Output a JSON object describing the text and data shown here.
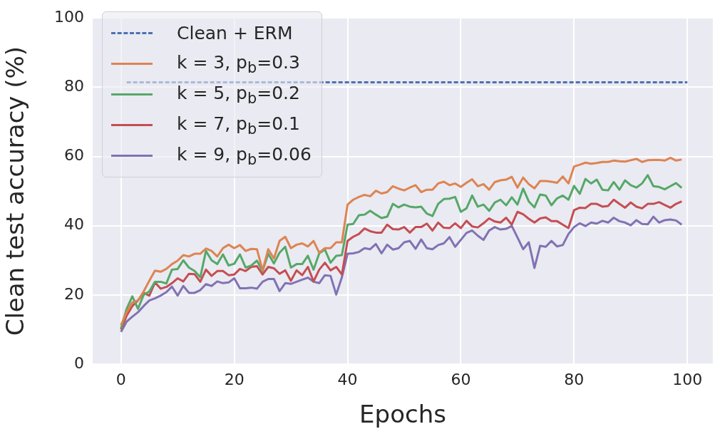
{
  "chart_data": {
    "type": "line",
    "xlabel": "Epochs",
    "ylabel": "Clean test accuracy (%)",
    "x": [
      0,
      1,
      2,
      3,
      4,
      5,
      6,
      7,
      8,
      9,
      10,
      11,
      12,
      13,
      14,
      15,
      16,
      17,
      18,
      19,
      20,
      21,
      22,
      23,
      24,
      25,
      26,
      27,
      28,
      29,
      30,
      31,
      32,
      33,
      34,
      35,
      36,
      37,
      38,
      39,
      40,
      41,
      42,
      43,
      44,
      45,
      46,
      47,
      48,
      49,
      50,
      51,
      52,
      53,
      54,
      55,
      56,
      57,
      58,
      59,
      60,
      61,
      62,
      63,
      64,
      65,
      66,
      67,
      68,
      69,
      70,
      71,
      72,
      73,
      74,
      75,
      76,
      77,
      78,
      79,
      80,
      81,
      82,
      83,
      84,
      85,
      86,
      87,
      88,
      89,
      90,
      91,
      92,
      93,
      94,
      95,
      96,
      97,
      98,
      99
    ],
    "xlim": [
      -5,
      104.5
    ],
    "xticks": [
      0,
      20,
      40,
      60,
      80,
      100
    ],
    "ylim": [
      0,
      100
    ],
    "yticks": [
      0,
      20,
      40,
      60,
      80,
      100
    ],
    "grid": true,
    "legend": "top left",
    "marker": "none",
    "series": [
      {
        "name": "Clean + ERM",
        "color": "#4c72b0",
        "line_style": "dashed",
        "x": [
          1,
          100
        ],
        "values": [
          81.4,
          81.4
        ]
      },
      {
        "name": "k = 3, p$_{b}$=0.3",
        "color": "#dd8452",
        "line_style": "solid",
        "values": [
          11.3,
          15,
          17.8,
          18.4,
          21,
          24.1,
          27,
          26.7,
          27.5,
          28.9,
          29.9,
          31.5,
          31.1,
          31.9,
          31.9,
          33.4,
          32.7,
          31.1,
          33.5,
          34.5,
          33.5,
          34.4,
          32.7,
          33.3,
          33.2,
          27.1,
          33.2,
          30.5,
          35.6,
          36.8,
          33.5,
          34.5,
          34.9,
          34,
          35.6,
          32.2,
          33.5,
          33.5,
          35.2,
          35.2,
          46.1,
          47.5,
          48.3,
          48.9,
          48.5,
          50.1,
          49.3,
          49.7,
          51.4,
          50.7,
          50.2,
          51,
          51.7,
          49.7,
          50.4,
          50.4,
          52.2,
          52.7,
          51.7,
          52.2,
          51.2,
          52.4,
          53.4,
          51.4,
          52,
          50.4,
          52.6,
          53.1,
          53.3,
          54.1,
          51,
          53.9,
          52,
          50.8,
          52.9,
          52.9,
          52.7,
          52.4,
          54.2,
          52.2,
          57.1,
          57.6,
          58.2,
          57.9,
          58.1,
          58.4,
          58.4,
          58.8,
          58.6,
          58.5,
          58.9,
          59.3,
          58.4,
          58.9,
          59,
          59,
          58.8,
          59.6,
          58.8,
          59.1
        ]
      },
      {
        "name": "k = 5, p$_{b}$=0.2",
        "color": "#55a868",
        "line_style": "solid",
        "values": [
          10.3,
          16,
          19.6,
          16,
          20,
          21,
          23.8,
          23.8,
          23.3,
          27.3,
          27.5,
          30,
          27.9,
          26.9,
          25.1,
          32.7,
          30,
          28.9,
          31.7,
          28.5,
          29,
          31.7,
          27.9,
          28.5,
          29.9,
          26.9,
          31.9,
          29.1,
          32.2,
          33.9,
          27.9,
          28.9,
          28.9,
          31.3,
          27.3,
          32,
          33.1,
          29.3,
          31.3,
          31.5,
          40.3,
          40.5,
          43,
          43.2,
          44.3,
          43.2,
          42.2,
          42.6,
          46.3,
          45.3,
          46.1,
          45.5,
          45.3,
          45.5,
          43.5,
          42.8,
          46.3,
          47.7,
          47.8,
          48.3,
          44,
          45,
          48.7,
          45.5,
          46.1,
          44.3,
          46.7,
          47.5,
          45.9,
          48.2,
          46.1,
          50.7,
          47,
          45.3,
          49,
          48.7,
          45.9,
          47.9,
          48.7,
          47.5,
          51.5,
          49.2,
          53.5,
          52.2,
          53.3,
          50.4,
          50.2,
          52.6,
          50.4,
          53.1,
          51.7,
          51,
          52.2,
          54.6,
          51.4,
          51.2,
          50.5,
          51.4,
          52.3,
          50.9
        ]
      },
      {
        "name": "k = 7, p$_{b}$=0.1",
        "color": "#c44e52",
        "line_style": "solid",
        "values": [
          10,
          14,
          16.8,
          18.4,
          20.6,
          19.8,
          23.6,
          21.8,
          22.3,
          23.4,
          24.8,
          23.9,
          26.1,
          26,
          23.8,
          27.3,
          25.5,
          26.9,
          26.9,
          25.7,
          25.9,
          27.5,
          26.9,
          28.1,
          28.3,
          25.9,
          28.1,
          27.7,
          26.1,
          27.1,
          24.1,
          27.1,
          25.7,
          28.1,
          23.9,
          27.3,
          29.3,
          27.1,
          28.1,
          25.9,
          35.6,
          36.8,
          37.6,
          39.2,
          38.4,
          38,
          38,
          40.3,
          39,
          38.9,
          39.6,
          38,
          39.6,
          39.6,
          40.6,
          38.6,
          40.9,
          39.4,
          39.3,
          40.7,
          39.3,
          41.4,
          39.8,
          39.5,
          40.7,
          42.1,
          41.2,
          40.9,
          42.3,
          40.3,
          44,
          43.3,
          42,
          40.9,
          42.1,
          42.4,
          41.3,
          41.3,
          40.3,
          39.3,
          44.5,
          45.2,
          45.1,
          46.3,
          46.3,
          45.5,
          45.7,
          47.5,
          46.3,
          45.2,
          46.7,
          45.5,
          45,
          46.3,
          46.3,
          46.8,
          46,
          45.2,
          46.3,
          47
        ]
      },
      {
        "name": "k = 9, p$_{b}$=0.06",
        "color": "#8172b3",
        "line_style": "solid",
        "values": [
          9.3,
          12.3,
          13.7,
          15,
          16.8,
          18.4,
          19,
          19.8,
          20.8,
          22.4,
          19.8,
          22.6,
          20.6,
          20.6,
          21.4,
          23.1,
          22.6,
          23.9,
          23.4,
          23.6,
          24.8,
          21.9,
          21.9,
          22.1,
          21.8,
          23.8,
          24.6,
          24.6,
          21.1,
          23.4,
          23.2,
          23.8,
          24.4,
          25,
          23.8,
          23.4,
          25.7,
          25.5,
          20.1,
          25.1,
          31.9,
          32,
          32.4,
          33.5,
          33.2,
          34.7,
          32,
          34.5,
          33.1,
          33.5,
          35.2,
          35.6,
          33.3,
          36,
          33.5,
          33.2,
          34.4,
          34.9,
          36.7,
          33.9,
          35.9,
          37.9,
          38.6,
          37.1,
          35.9,
          38.6,
          39.6,
          38.9,
          39.1,
          39.9,
          36.6,
          33.2,
          35.2,
          27.8,
          34.2,
          33.9,
          35.6,
          34,
          34.4,
          37.6,
          39.6,
          40.7,
          39.9,
          40.9,
          40.6,
          41.4,
          40.9,
          42.3,
          41.3,
          40.9,
          40.1,
          41.6,
          40.5,
          40.4,
          42.6,
          40.9,
          41.6,
          41.8,
          41.5,
          40.3
        ]
      }
    ]
  }
}
